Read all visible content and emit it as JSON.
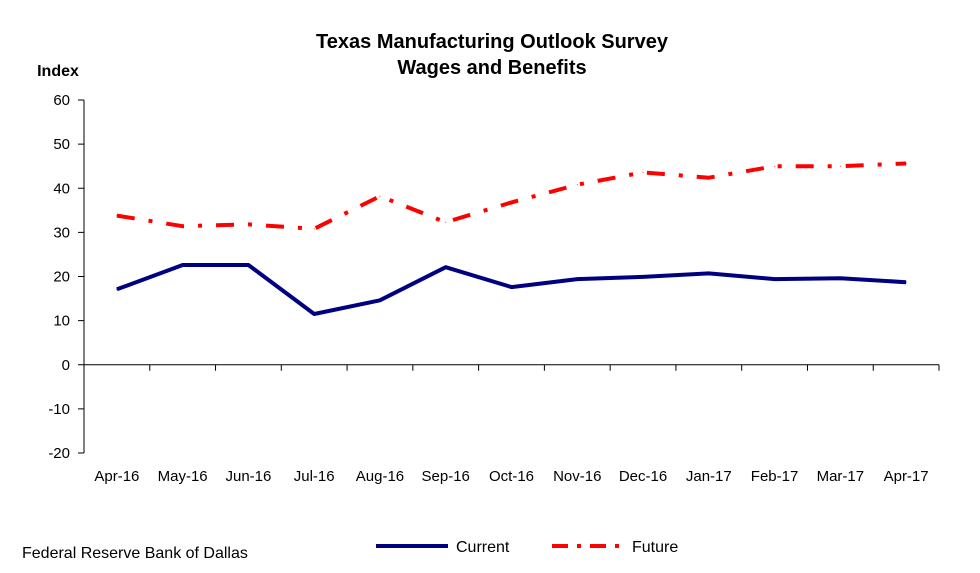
{
  "chart_data": {
    "type": "line",
    "title": "Texas Manufacturing Outlook Survey",
    "subtitle": "Wages and Benefits",
    "ylabel": "Index",
    "xlabel": "",
    "ylim": [
      -20,
      60
    ],
    "yticks": [
      60,
      50,
      40,
      30,
      20,
      10,
      0,
      -10,
      -20
    ],
    "categories": [
      "Apr-16",
      "May-16",
      "Jun-16",
      "Jul-16",
      "Aug-16",
      "Sep-16",
      "Oct-16",
      "Nov-16",
      "Dec-16",
      "Jan-17",
      "Feb-17",
      "Mar-17",
      "Apr-17"
    ],
    "series": [
      {
        "name": "Current",
        "color": "#000080",
        "style": "solid",
        "values": [
          17.1,
          22.6,
          22.6,
          11.5,
          14.6,
          22.1,
          17.6,
          19.4,
          19.9,
          20.7,
          19.4,
          19.6,
          18.7
        ]
      },
      {
        "name": "Future",
        "color": "#ff0000",
        "style": "dash-dot",
        "values": [
          33.8,
          31.4,
          31.8,
          30.8,
          38.2,
          32.3,
          36.8,
          40.8,
          43.6,
          42.4,
          45.0,
          45.0,
          45.6
        ]
      }
    ],
    "legend": {
      "placement": "bottom-center"
    },
    "grid": false
  },
  "footer": {
    "source": "Federal Reserve Bank of Dallas"
  }
}
